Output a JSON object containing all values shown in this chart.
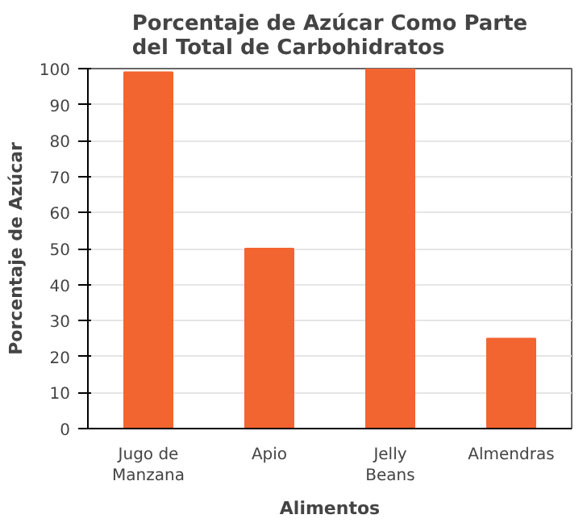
{
  "chart_data": {
    "type": "bar",
    "title": "Porcentaje de Azúcar Como Parte\ndel Total de Carbohidratos",
    "xlabel": "Alimentos",
    "ylabel": "Porcentaje de Azúcar",
    "categories": [
      "Jugo de\nManzana",
      "Apio",
      "Jelly\nBeans",
      "Almendras"
    ],
    "values": [
      99,
      50,
      100,
      25
    ],
    "color": "#f26430",
    "ylim": [
      0,
      100
    ],
    "yticks": [
      0,
      10,
      20,
      30,
      40,
      50,
      60,
      70,
      80,
      90,
      100
    ],
    "grid": "y"
  }
}
